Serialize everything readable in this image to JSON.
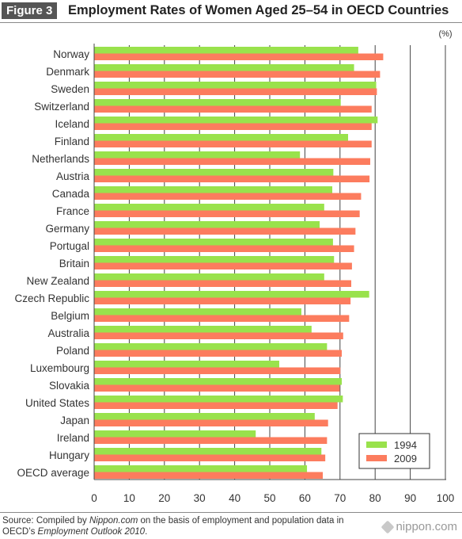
{
  "header": {
    "figure_label": "Figure 3",
    "title": "Employment Rates of Women Aged 25–54 in OECD Countries"
  },
  "chart_data": {
    "type": "bar",
    "orientation": "horizontal",
    "title": "Employment Rates of Women Aged 25–54 in OECD Countries",
    "unit_label": "(%)",
    "categories": [
      "Norway",
      "Denmark",
      "Sweden",
      "Switzerland",
      "Iceland",
      "Finland",
      "Netherlands",
      "Austria",
      "Canada",
      "France",
      "Germany",
      "Portugal",
      "Britain",
      "New Zealand",
      "Czech Republic",
      "Belgium",
      "Australia",
      "Poland",
      "Luxembourg",
      "Slovakia",
      "United States",
      "Japan",
      "Ireland",
      "Hungary",
      "OECD average"
    ],
    "series": [
      {
        "name": "1994",
        "color": "#99e24c",
        "values": [
          75.2,
          74.0,
          80.3,
          70.2,
          80.7,
          72.3,
          58.6,
          68.1,
          67.8,
          65.5,
          64.2,
          68.0,
          68.3,
          65.5,
          78.3,
          59.0,
          61.9,
          66.3,
          52.7,
          70.5,
          70.8,
          62.8,
          46.0,
          64.7,
          60.6
        ]
      },
      {
        "name": "2009",
        "color": "#fc7c5e",
        "values": [
          82.3,
          81.4,
          80.5,
          79.0,
          79.0,
          79.0,
          78.6,
          78.4,
          76.0,
          75.6,
          74.4,
          74.0,
          73.4,
          73.2,
          73.0,
          72.6,
          70.9,
          70.5,
          70.1,
          69.9,
          69.3,
          66.6,
          66.3,
          65.8,
          65.1
        ]
      }
    ],
    "xlim": [
      0,
      100
    ],
    "x_ticks": [
      0,
      10,
      20,
      30,
      40,
      50,
      60,
      70,
      80,
      90,
      100
    ],
    "grid": true,
    "legend_position": "bottom-right"
  },
  "footer": {
    "source_prefix": "Source: Compiled by ",
    "source_site": "Nippon.com",
    "source_mid": " on the basis of employment and population data in OECD’s ",
    "source_pub": "Employment Outlook 2010",
    "source_end": ".",
    "logo": "nippon.com"
  }
}
